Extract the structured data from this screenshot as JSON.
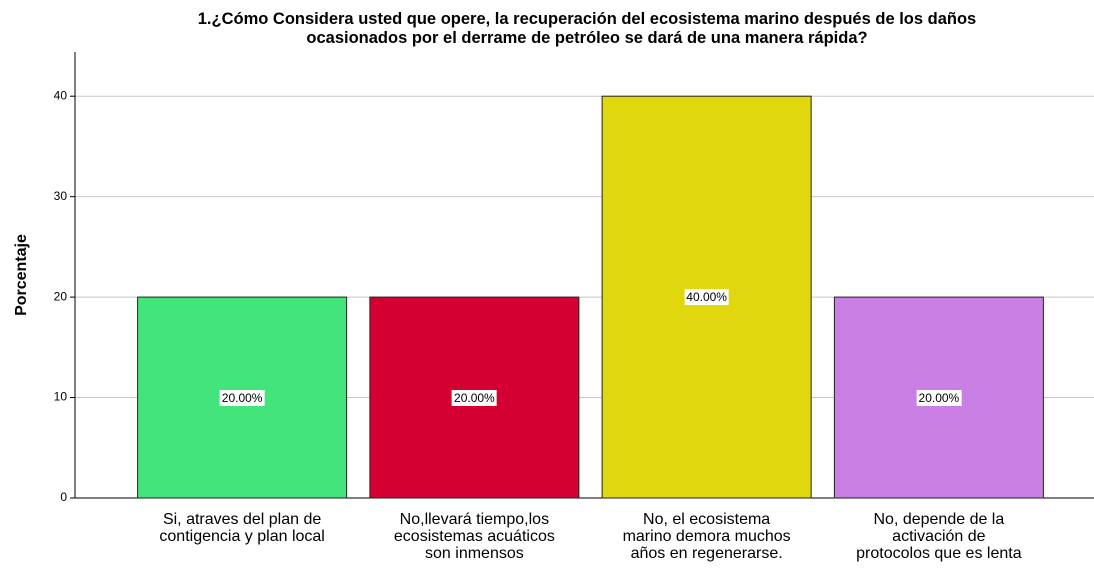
{
  "chart_data": {
    "type": "bar",
    "title": "1.¿Cómo Considera usted que opere, la recuperación del ecosistema marino después de los daños\nocasionados por el derrame de petróleo se dará de una manera rápida?",
    "y_label": "Porcentaje",
    "categories": [
      "Si, atraves del plan de\ncontigencia y plan local",
      "No,llevará tiempo,los\necosistemas acuáticos\nson inmensos",
      "No, el ecosistema\nmarino demora muchos\naños en regenerarse.",
      "No, depende de la\nactivación de\nprotocolos que es lenta"
    ],
    "values": [
      20,
      20,
      40,
      20
    ],
    "value_labels": [
      "20.00%",
      "20.00%",
      "40.00%",
      "20.00%"
    ],
    "colors": [
      "#44e47c",
      "#d50032",
      "#e1d70f",
      "#c97fe3"
    ],
    "ylim": [
      0,
      44.4
    ],
    "yticks": [
      0,
      10,
      20,
      30,
      40
    ],
    "grid": true
  }
}
